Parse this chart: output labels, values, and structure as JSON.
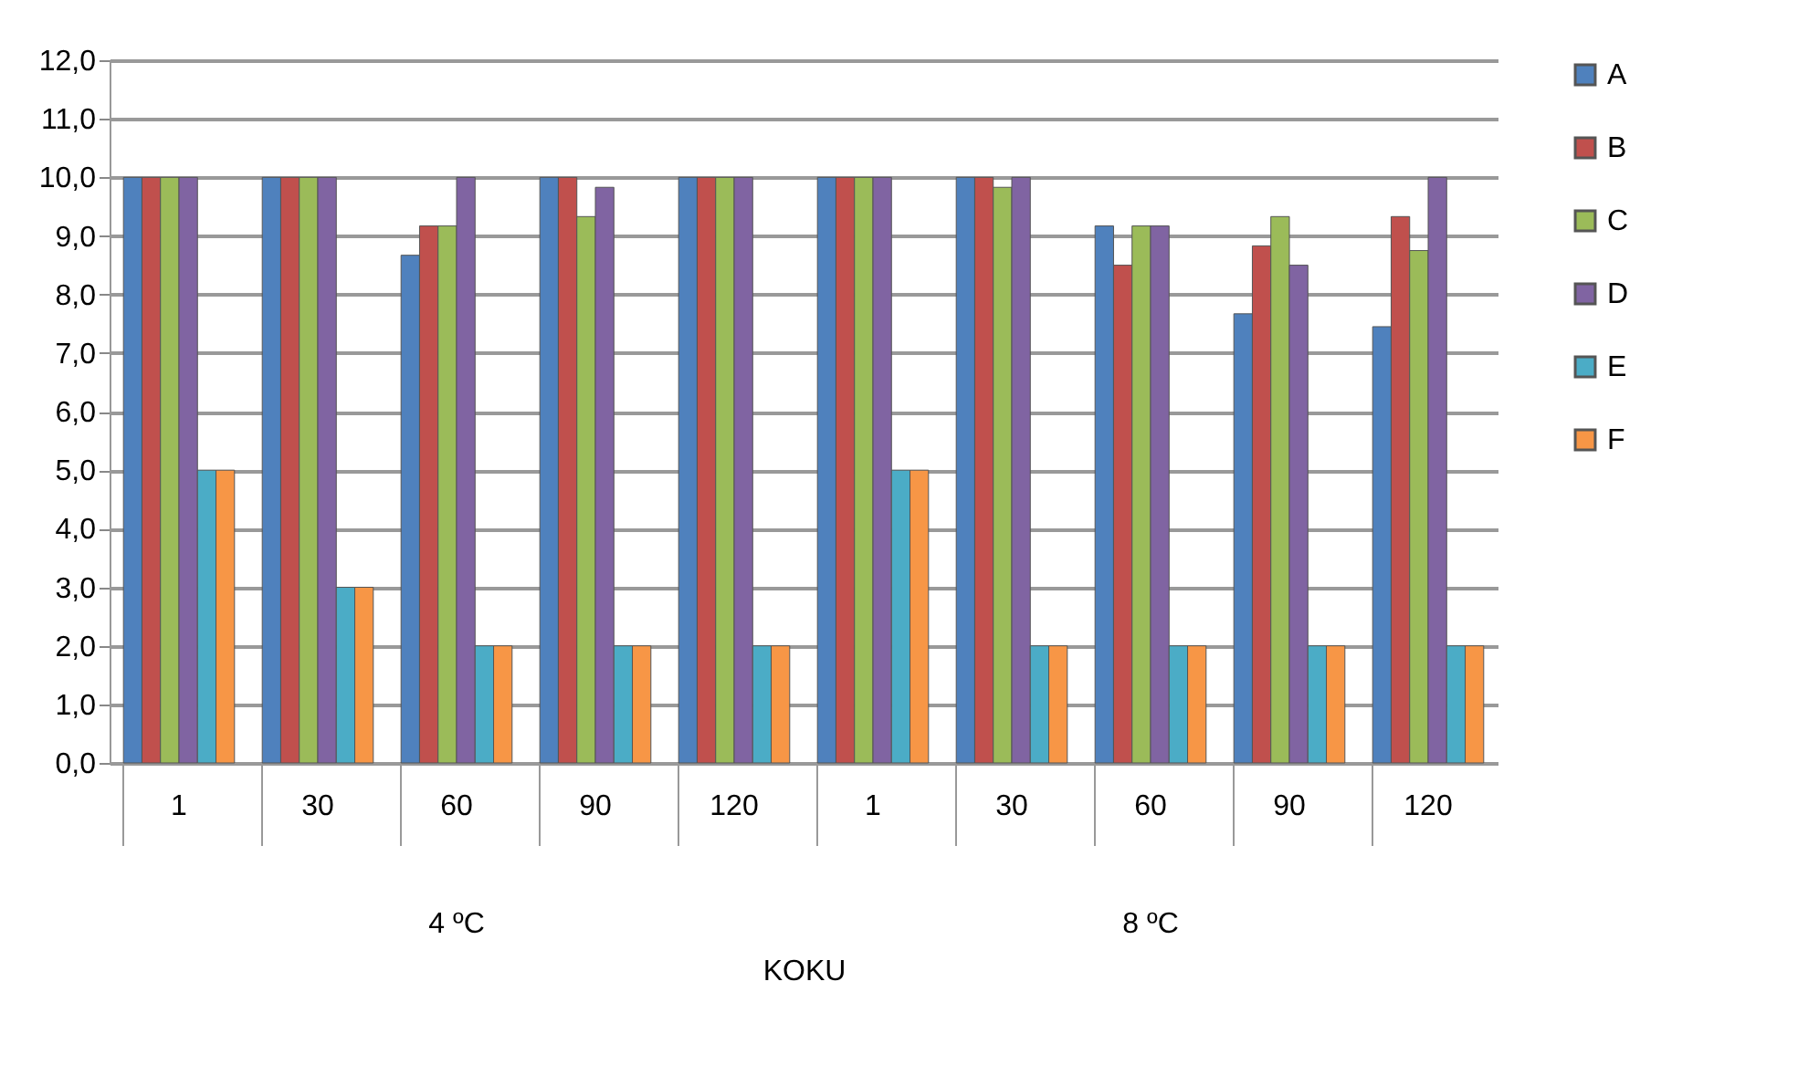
{
  "chart_data": {
    "type": "bar",
    "xlabel": "KOKU",
    "categories": [
      "1",
      "30",
      "60",
      "90",
      "120",
      "1",
      "30",
      "60",
      "90",
      "120"
    ],
    "annotations": [
      "4 ºC",
      "8 ºC"
    ],
    "series": [
      {
        "name": "A",
        "color": "#4f81bd",
        "values": [
          10,
          10,
          8.67,
          10,
          10,
          10,
          10,
          9.17,
          7.67,
          7.45
        ]
      },
      {
        "name": "B",
        "color": "#c0504d",
        "values": [
          10,
          10,
          9.17,
          10,
          10,
          10,
          10,
          8.5,
          8.83,
          9.33
        ]
      },
      {
        "name": "C",
        "color": "#9bbb59",
        "values": [
          10,
          10,
          9.17,
          9.33,
          10,
          10,
          9.83,
          9.17,
          9.33,
          8.75
        ]
      },
      {
        "name": "D",
        "color": "#8064a2",
        "values": [
          10,
          10,
          10,
          9.83,
          10,
          10,
          10,
          9.17,
          8.5,
          10
        ]
      },
      {
        "name": "E",
        "color": "#4bacc6",
        "values": [
          5,
          3,
          2,
          2,
          2,
          5,
          2,
          2,
          2,
          2
        ]
      },
      {
        "name": "F",
        "color": "#f79646",
        "values": [
          5,
          3,
          2,
          2,
          2,
          5,
          2,
          2,
          2,
          2
        ]
      }
    ],
    "ylim": [
      0,
      12
    ],
    "yticks": [
      {
        "value": 0,
        "label": "0,0"
      },
      {
        "value": 1,
        "label": "1,0"
      },
      {
        "value": 2,
        "label": "2,0"
      },
      {
        "value": 3,
        "label": "3,0"
      },
      {
        "value": 4,
        "label": "4,0"
      },
      {
        "value": 5,
        "label": "5,0"
      },
      {
        "value": 6,
        "label": "6,0"
      },
      {
        "value": 7,
        "label": "7,0"
      },
      {
        "value": 8,
        "label": "8,0"
      },
      {
        "value": 9,
        "label": "9,0"
      },
      {
        "value": 10,
        "label": "10,0"
      },
      {
        "value": 11,
        "label": "11,0"
      },
      {
        "value": 12,
        "label": "12,0"
      }
    ],
    "grid": "y",
    "legend": "right"
  }
}
